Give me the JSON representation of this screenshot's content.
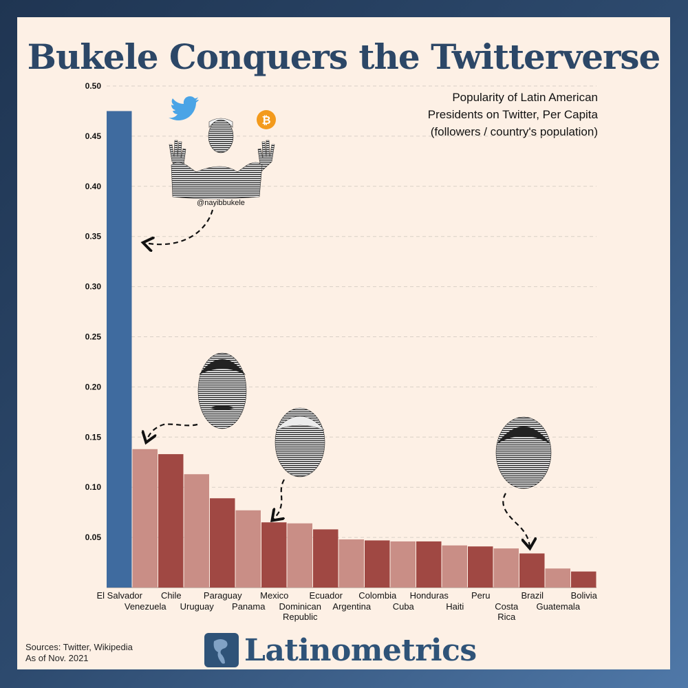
{
  "title": "Bukele Conquers the Twitterverse",
  "subtitle_lines": [
    "Popularity of Latin American",
    "Presidents on Twitter, Per Capita",
    "(followers / country's population)"
  ],
  "handle": "@nayibbukele",
  "sources_lines": [
    "Sources: Twitter, Wikipedia",
    "As of Nov. 2021"
  ],
  "brand": "Latinometrics",
  "colors": {
    "highlight": "#3f6b9f",
    "dark_red": "#a04843",
    "light_red": "#c98e86",
    "title": "#2c4767",
    "background": "#fdf0e5"
  },
  "icons": [
    "twitter-bird-icon",
    "bitcoin-icon",
    "latinometrics-logo-icon"
  ],
  "chart_data": {
    "type": "bar",
    "title": "Popularity of Latin American Presidents on Twitter, Per Capita (followers / country's population)",
    "xlabel": "",
    "ylabel": "",
    "ylim": [
      0,
      0.5
    ],
    "yticks": [
      "0.05",
      "0.10",
      "0.15",
      "0.20",
      "0.25",
      "0.30",
      "0.35",
      "0.40",
      "0.45",
      "0.50"
    ],
    "grid": true,
    "categories": [
      "El Salvador",
      "Venezuela",
      "Chile",
      "Uruguay",
      "Paraguay",
      "Panama",
      "Mexico",
      "Dominican Republic",
      "Ecuador",
      "Argentina",
      "Colombia",
      "Cuba",
      "Honduras",
      "Haiti",
      "Peru",
      "Costa Rica",
      "Brazil",
      "Guatemala",
      "Bolivia"
    ],
    "category_labels": [
      [
        "El Salvador"
      ],
      [
        "Venezuela"
      ],
      [
        "Chile"
      ],
      [
        "Uruguay"
      ],
      [
        "Paraguay"
      ],
      [
        "Panama"
      ],
      [
        "Mexico"
      ],
      [
        "Dominican",
        "Republic"
      ],
      [
        "Ecuador"
      ],
      [
        "Argentina"
      ],
      [
        "Colombia"
      ],
      [
        "Cuba"
      ],
      [
        "Honduras"
      ],
      [
        "Haiti"
      ],
      [
        "Peru"
      ],
      [
        "Costa",
        "Rica"
      ],
      [
        "Brazil"
      ],
      [
        "Guatemala"
      ],
      [
        "Bolivia"
      ]
    ],
    "values": [
      0.475,
      0.138,
      0.133,
      0.113,
      0.089,
      0.077,
      0.065,
      0.064,
      0.058,
      0.048,
      0.047,
      0.046,
      0.046,
      0.042,
      0.041,
      0.039,
      0.034,
      0.019,
      0.016
    ]
  }
}
